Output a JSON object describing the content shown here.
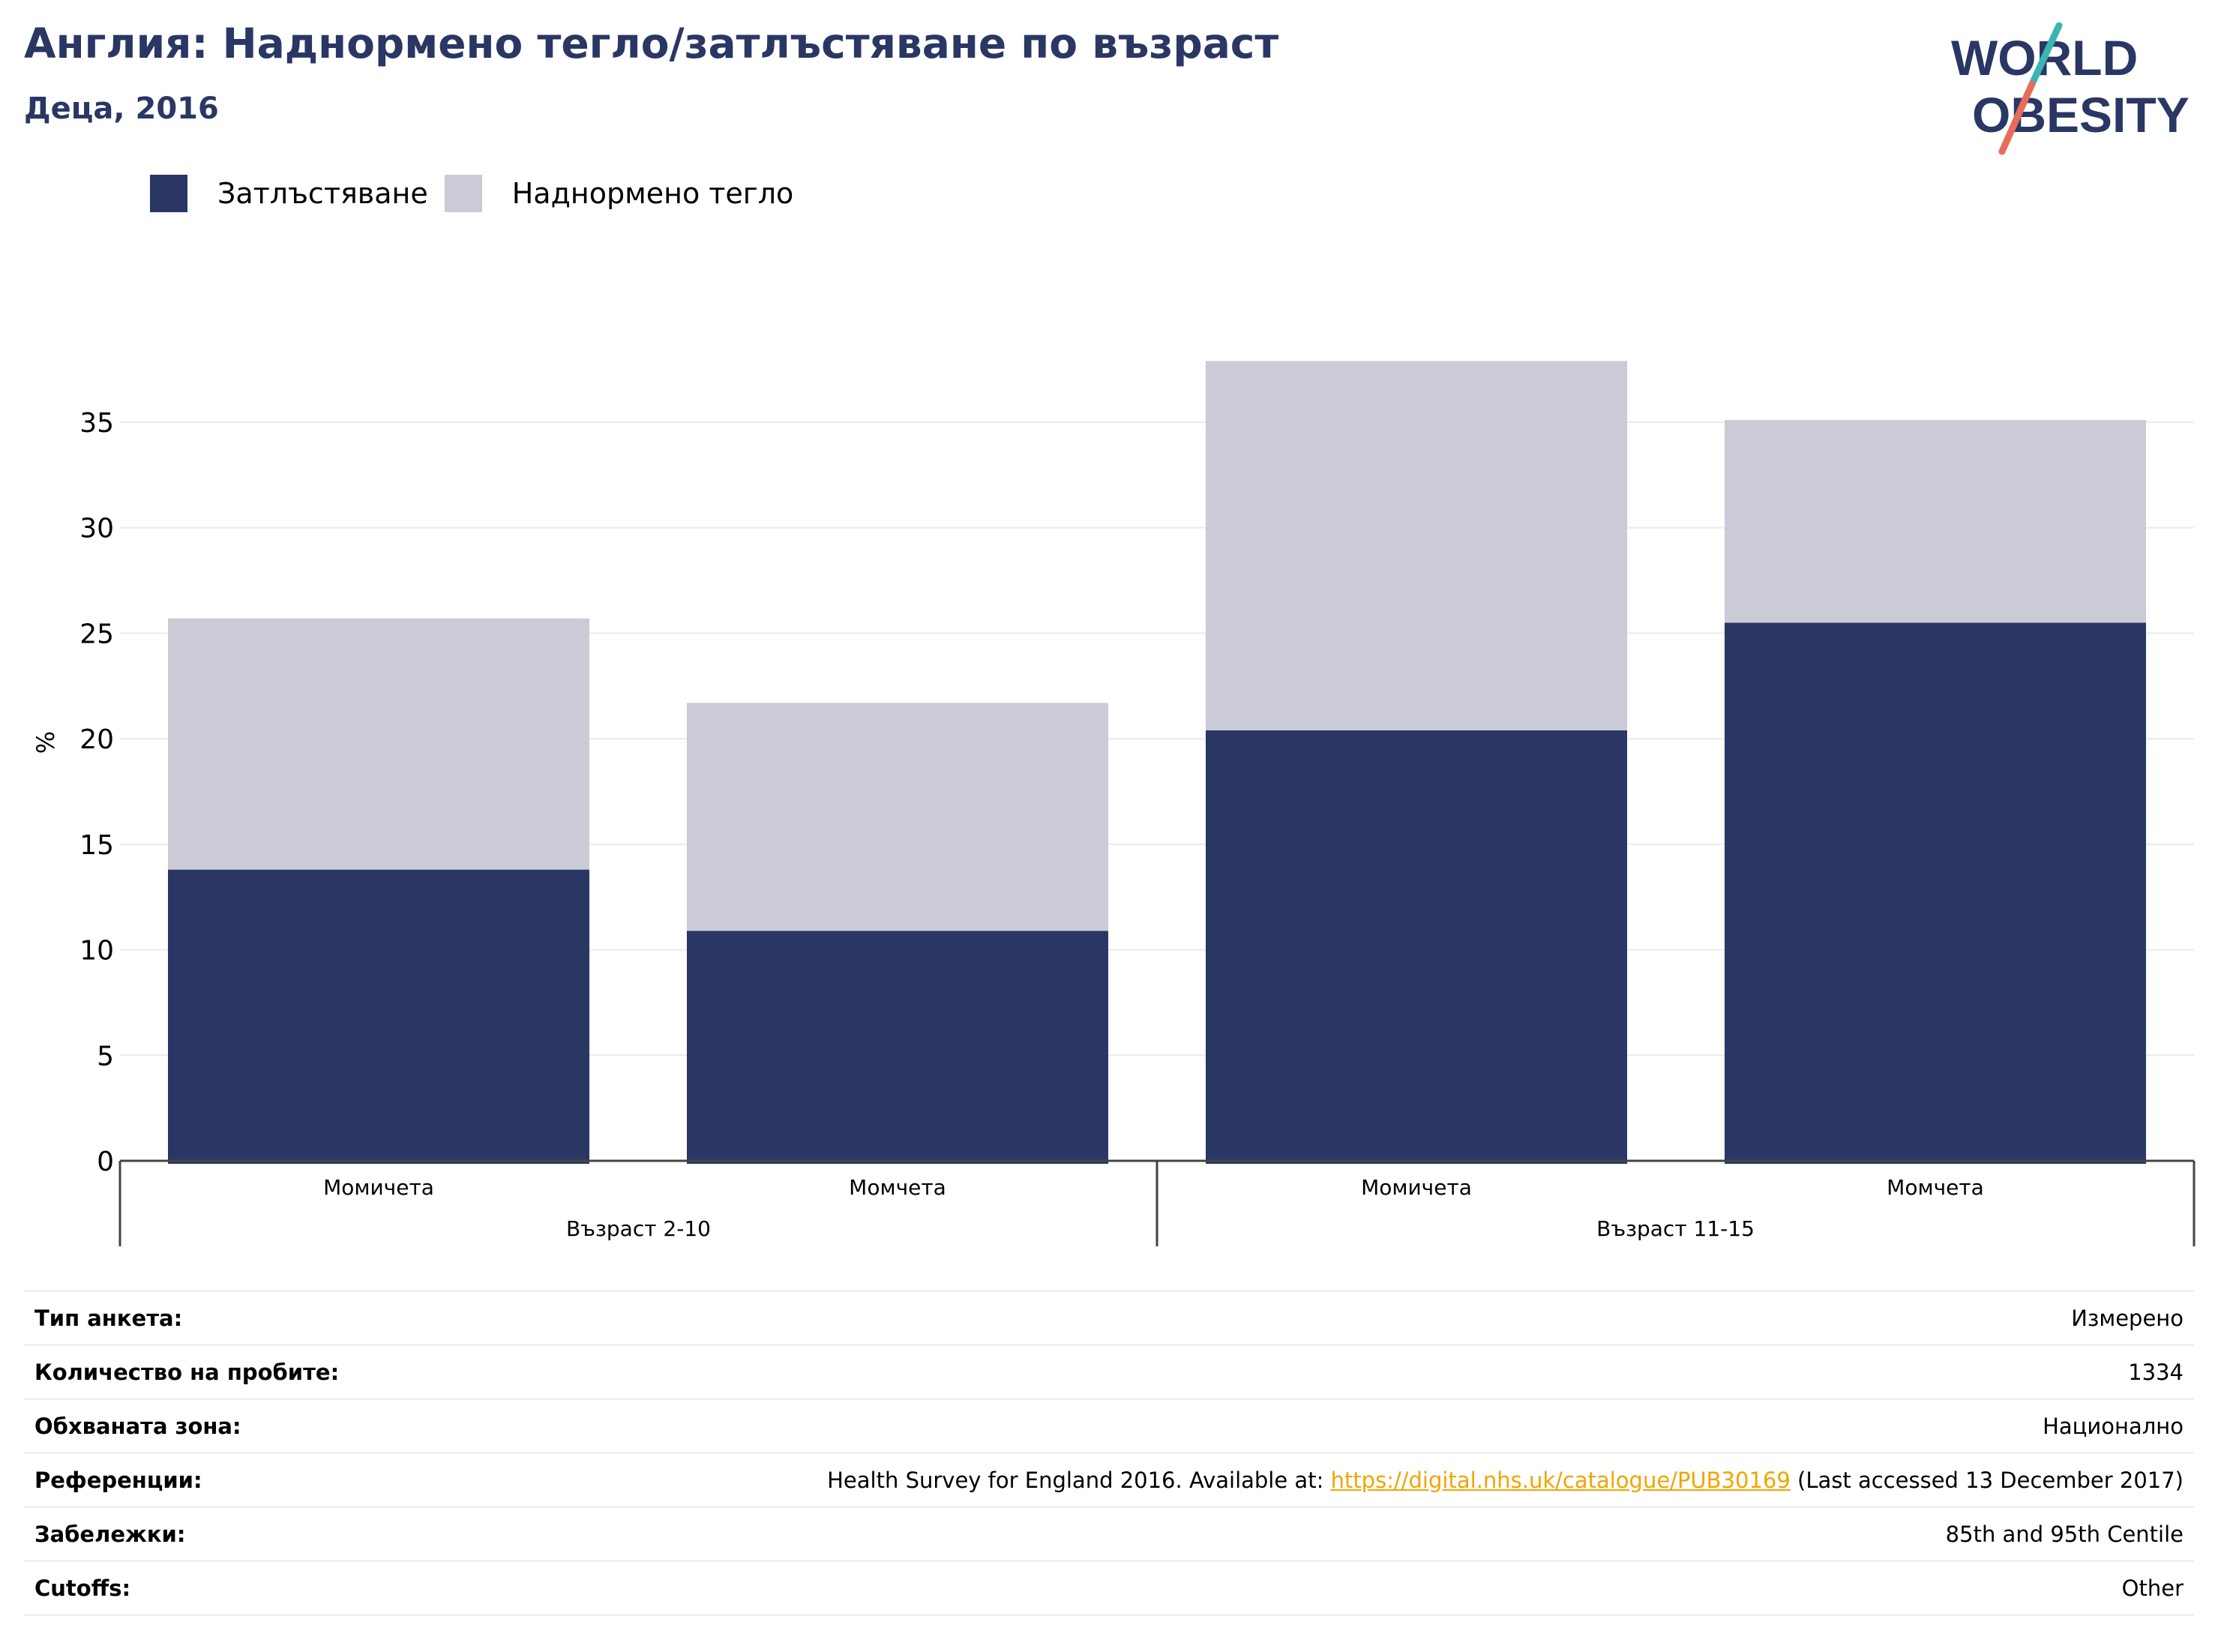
{
  "header": {
    "title": "Англия: Наднормено тегло/затлъстяване по възраст",
    "subtitle": "Деца, 2016"
  },
  "logo": {
    "line1": "WORLD",
    "line2": "OBESITY",
    "colors": {
      "text": "#2a3764",
      "accent_top": "#3ab5b0",
      "accent_bottom": "#e86c5a"
    }
  },
  "colors": {
    "obesity": "#2a3764",
    "overweight": "#cacbd7",
    "grid": "#e8eaee",
    "axis": "#444444",
    "link": "#f0a500"
  },
  "chart_data": {
    "type": "bar",
    "stacked": true,
    "ylabel": "%",
    "ylim": [
      0,
      38
    ],
    "yticks": [
      0,
      5,
      10,
      15,
      20,
      25,
      30,
      35
    ],
    "grid": true,
    "legend_position": "top-left",
    "categories": [
      "Момичета",
      "Момчета",
      "Момичета",
      "Момчета"
    ],
    "groups": [
      {
        "label": "Възраст 2-10",
        "start": 0,
        "end": 1
      },
      {
        "label": "Възраст 11-15",
        "start": 2,
        "end": 3
      }
    ],
    "series": [
      {
        "name": "Затлъстяване",
        "values": [
          13.8,
          10.9,
          20.4,
          25.5
        ]
      },
      {
        "name": "Наднормено тегло",
        "values": [
          11.9,
          10.8,
          17.5,
          9.6
        ]
      }
    ]
  },
  "info": {
    "rows": [
      {
        "label": "Тип анкета:",
        "value": "Измерено"
      },
      {
        "label": "Количество на пробите:",
        "value": "1334"
      },
      {
        "label": "Обхваната зона:",
        "value": "Национално"
      },
      {
        "label": "Референции:",
        "value_pre": "Health Survey for England 2016. Available at: ",
        "value_link": "https://digital.nhs.uk/catalogue/PUB30169",
        "value_post": " (Last accessed 13 December 2017)"
      },
      {
        "label": "Забележки:",
        "value": "85th and 95th Centile"
      },
      {
        "label": "Cutoffs:",
        "value": "Other"
      }
    ]
  }
}
